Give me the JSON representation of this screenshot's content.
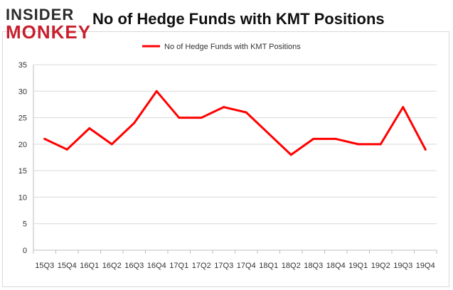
{
  "brand": {
    "line1": "INSIDER",
    "line2": "MONKEY"
  },
  "chart_data": {
    "type": "line",
    "title": "No of Hedge Funds with KMT Positions",
    "xlabel": "",
    "ylabel": "",
    "ylim": [
      0,
      35
    ],
    "yticks": [
      0,
      5,
      10,
      15,
      20,
      25,
      30,
      35
    ],
    "grid": true,
    "legend": "top-center",
    "categories": [
      "15Q3",
      "15Q4",
      "16Q1",
      "16Q2",
      "16Q3",
      "16Q4",
      "17Q1",
      "17Q2",
      "17Q3",
      "17Q4",
      "18Q1",
      "18Q2",
      "18Q3",
      "18Q4",
      "19Q1",
      "19Q2",
      "19Q3",
      "19Q4"
    ],
    "series": [
      {
        "name": "No of Hedge Funds with KMT Positions",
        "color": "#ff0000",
        "values": [
          21,
          19,
          23,
          20,
          24,
          30,
          25,
          25,
          27,
          26,
          22,
          18,
          21,
          21,
          20,
          20,
          27,
          19
        ]
      }
    ]
  }
}
